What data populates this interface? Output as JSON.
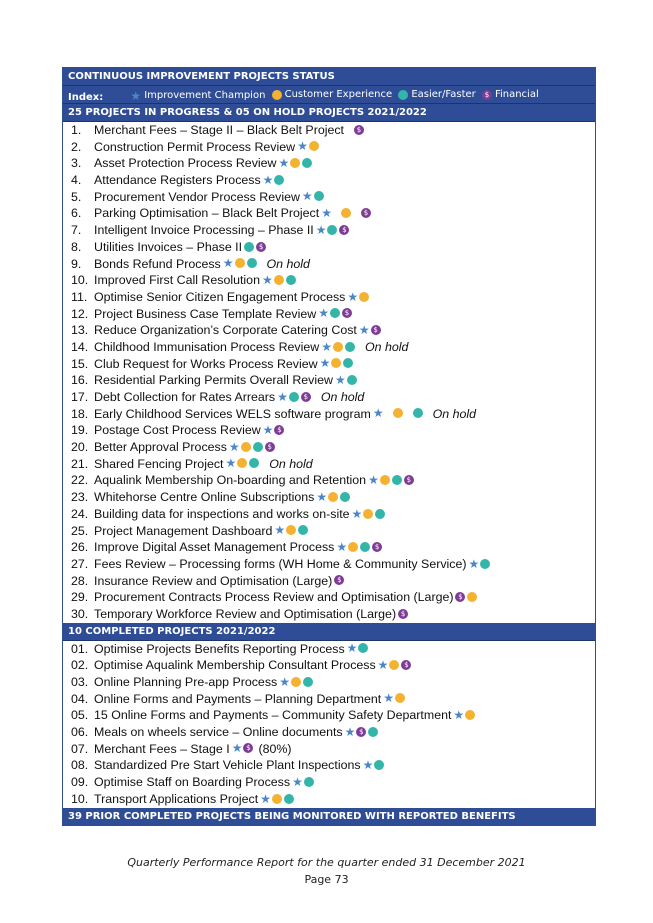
{
  "header": {
    "title": "CONTINUOUS IMPROVEMENT PROJECTS STATUS",
    "index_label": "Index:",
    "legend": [
      {
        "icon": "star-icon",
        "label": "Improvement Champion"
      },
      {
        "icon": "orange-circle-icon",
        "label": "Customer Experience"
      },
      {
        "icon": "teal-circle-icon",
        "label": "Easier/Faster"
      },
      {
        "icon": "dollar-circle-icon",
        "label": "Financial"
      }
    ]
  },
  "colors": {
    "bar": "#2e4d96",
    "star": "#4a86c8",
    "orange": "#f5b130",
    "teal": "#33b5a9",
    "purple": "#7f3c96"
  },
  "sections": [
    {
      "title": "25 PROJECTS IN PROGRESS & 05 ON HOLD PROJECTS 2021/2022",
      "items": [
        {
          "num": "1.",
          "text": "Merchant Fees – Stage II – Black Belt Project",
          "icons": [
            "gap",
            "P"
          ]
        },
        {
          "num": "2.",
          "text": "Construction Permit Process Review",
          "icons": [
            "S",
            "O"
          ]
        },
        {
          "num": "3.",
          "text": "Asset Protection Process Review",
          "icons": [
            "S",
            "O",
            "T"
          ]
        },
        {
          "num": "4.",
          "text": "Attendance Registers Process",
          "icons": [
            "S",
            "T"
          ]
        },
        {
          "num": "5.",
          "text": "Procurement Vendor Process Review",
          "icons": [
            "S",
            "T"
          ]
        },
        {
          "num": "6.",
          "text": "Parking Optimisation – Black Belt Project",
          "icons": [
            "S",
            "gap",
            "O",
            "gap",
            "P"
          ]
        },
        {
          "num": "7.",
          "text": "Intelligent Invoice Processing – Phase II",
          "icons": [
            "S",
            "T",
            "P"
          ]
        },
        {
          "num": "8.",
          "text": "Utilities Invoices – Phase II",
          "icons": [
            "T",
            "P"
          ]
        },
        {
          "num": "9.",
          "text": "Bonds Refund Process",
          "icons": [
            "S",
            "O",
            "T"
          ],
          "status": "On hold"
        },
        {
          "num": "10.",
          "text": "Improved First Call Resolution",
          "icons": [
            "S",
            "O",
            "T"
          ]
        },
        {
          "num": "11.",
          "text": "Optimise Senior Citizen Engagement Process",
          "icons": [
            "S",
            "O"
          ]
        },
        {
          "num": "12.",
          "text": "Project Business Case Template Review",
          "icons": [
            "S",
            "T",
            "P"
          ]
        },
        {
          "num": "13.",
          "text": "Reduce Organization’s Corporate Catering Cost",
          "icons": [
            "S",
            "P"
          ]
        },
        {
          "num": "14.",
          "text": "Childhood Immunisation Process Review",
          "icons": [
            "S",
            "O",
            "T"
          ],
          "status": "On hold"
        },
        {
          "num": "15.",
          "text": "Club Request for Works Process Review",
          "icons": [
            "S",
            "O",
            "T"
          ]
        },
        {
          "num": "16.",
          "text": "Residential Parking Permits Overall Review",
          "icons": [
            "S",
            "T"
          ]
        },
        {
          "num": "17.",
          "text": "Debt Collection for Rates Arrears",
          "icons": [
            "S",
            "T",
            "P"
          ],
          "status": "On hold"
        },
        {
          "num": "18.",
          "text": "Early Childhood Services WELS software program",
          "icons": [
            "S",
            "gap",
            "O",
            "gap",
            "T"
          ],
          "status": "On hold"
        },
        {
          "num": "19.",
          "text": "Postage Cost Process Review",
          "icons": [
            "S",
            "P"
          ]
        },
        {
          "num": "20.",
          "text": "Better Approval Process",
          "icons": [
            "S",
            "O",
            "T",
            "P"
          ]
        },
        {
          "num": "21.",
          "text": "Shared Fencing Project",
          "icons": [
            "S",
            "O",
            "T"
          ],
          "status": "On hold"
        },
        {
          "num": "22.",
          "text": "Aqualink Membership On-boarding and Retention",
          "icons": [
            "S",
            "O",
            "T",
            "P"
          ]
        },
        {
          "num": "23.",
          "text": "Whitehorse Centre Online Subscriptions",
          "icons": [
            "S",
            "O",
            "T"
          ]
        },
        {
          "num": "24.",
          "text": "Building data for inspections and works on-site",
          "icons": [
            "S",
            "O",
            "T"
          ]
        },
        {
          "num": "25.",
          "text": "Project Management Dashboard",
          "icons": [
            "S",
            "O",
            "T"
          ]
        },
        {
          "num": "26.",
          "text": "Improve Digital Asset Management Process",
          "icons": [
            "S",
            "O",
            "T",
            "P"
          ]
        },
        {
          "num": "27.",
          "text": "Fees Review – Processing forms (WH Home & Community Service)",
          "icons": [
            "S",
            "T"
          ]
        },
        {
          "num": "28.",
          "text": "Insurance Review and Optimisation (Large)",
          "icons": [
            "P"
          ]
        },
        {
          "num": "29.",
          "text": "Procurement Contracts Process Review and Optimisation (Large)",
          "icons": [
            "P",
            "O"
          ]
        },
        {
          "num": "30.",
          "text": "Temporary Workforce Review and Optimisation (Large)",
          "icons": [
            "P"
          ]
        }
      ]
    },
    {
      "title": "10 COMPLETED PROJECTS 2021/2022",
      "items": [
        {
          "num": "01.",
          "text": "Optimise Projects Benefits Reporting Process",
          "icons": [
            "S",
            "T"
          ]
        },
        {
          "num": "02.",
          "text": "Optimise Aqualink Membership Consultant Process",
          "icons": [
            "S",
            "O",
            "P"
          ]
        },
        {
          "num": "03.",
          "text": "Online Planning Pre-app Process",
          "icons": [
            "S",
            "O",
            "T"
          ]
        },
        {
          "num": "04.",
          "text": "Online Forms and Payments – Planning Department",
          "icons": [
            "S",
            "O"
          ]
        },
        {
          "num": "05.",
          "text": "15 Online Forms and Payments – Community Safety Department",
          "icons": [
            "S",
            "O"
          ]
        },
        {
          "num": "06.",
          "text": "Meals on wheels service – Online documents",
          "icons": [
            "S",
            "P",
            "T"
          ]
        },
        {
          "num": "07.",
          "text": "Merchant Fees – Stage I",
          "icons": [
            "S",
            "P"
          ],
          "extra": "(80%)"
        },
        {
          "num": "08.",
          "text": "Standardized Pre Start Vehicle Plant Inspections",
          "icons": [
            "S",
            "T"
          ]
        },
        {
          "num": "09.",
          "text": "Optimise Staff on Boarding Process",
          "icons": [
            "S",
            "T"
          ]
        },
        {
          "num": "10.",
          "text": "Transport Applications Project",
          "icons": [
            "S",
            "O",
            "T"
          ]
        }
      ]
    }
  ],
  "bottom_bar": "39 PRIOR COMPLETED PROJECTS BEING MONITORED WITH REPORTED BENEFITS",
  "footer": {
    "report": "Quarterly Performance Report for the quarter ended 31 December 2021",
    "page": "Page 73"
  }
}
